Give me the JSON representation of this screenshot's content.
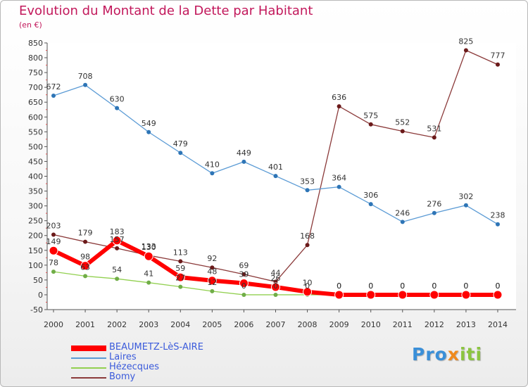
{
  "title": "Evolution du Montant de la Dette par Habitant",
  "subtitle": "(en €)",
  "logo": {
    "part1": "Pro",
    "part2": "x",
    "part3": "iti"
  },
  "chart_data": {
    "type": "line",
    "x": [
      "2000",
      "2001",
      "2002",
      "2003",
      "2004",
      "2005",
      "2006",
      "2007",
      "2008",
      "2009",
      "2010",
      "2011",
      "2012",
      "2013",
      "2014"
    ],
    "ylim": [
      -50,
      850
    ],
    "yticks": [
      -50,
      0,
      50,
      100,
      150,
      200,
      250,
      300,
      350,
      400,
      450,
      500,
      550,
      600,
      650,
      700,
      750,
      800,
      850
    ],
    "grid": false,
    "legend_position": "bottom-left",
    "series": [
      {
        "name": "BEAUMETZ-LèS-AIRE",
        "color": "#ff0000",
        "point_color": "#ff0000",
        "values": [
          149,
          98,
          183,
          130,
          59,
          48,
          39,
          26,
          10,
          0,
          0,
          0,
          0,
          0,
          0
        ],
        "labels": [
          "149",
          "98",
          "183",
          "130",
          "59",
          "48",
          "39",
          "26",
          "10",
          "0",
          "0",
          "0",
          "0",
          "0",
          "0"
        ]
      },
      {
        "name": "Laires",
        "color": "#5b9bd5",
        "point_color": "#2e75b6",
        "values": [
          672,
          708,
          630,
          549,
          479,
          410,
          449,
          401,
          353,
          364,
          306,
          246,
          276,
          302,
          238
        ],
        "labels": [
          "672",
          "708",
          "630",
          "549",
          "479",
          "410",
          "449",
          "401",
          "353",
          "364",
          "306",
          "246",
          "276",
          "302",
          "238"
        ]
      },
      {
        "name": "Hézecques",
        "color": "#92d050",
        "point_color": "#70ad47",
        "values": [
          78,
          63,
          54,
          41,
          27,
          12,
          0,
          0,
          0,
          0,
          0,
          0,
          0,
          0,
          0
        ],
        "labels": [
          "78",
          "63",
          "54",
          "41",
          "27",
          "12",
          "0",
          "0",
          "0",
          "0",
          "0",
          "0",
          "0",
          "0",
          "0"
        ]
      },
      {
        "name": "Bomy",
        "color": "#8b3a3a",
        "point_color": "#6b1a1a",
        "values": [
          203,
          179,
          157,
          133,
          113,
          92,
          69,
          44,
          168,
          636,
          575,
          552,
          531,
          825,
          777
        ],
        "labels": [
          "203",
          "179",
          "157",
          "133",
          "113",
          "92",
          "69",
          "44",
          "168",
          "636",
          "575",
          "552",
          "531",
          "825",
          "777"
        ]
      }
    ]
  }
}
